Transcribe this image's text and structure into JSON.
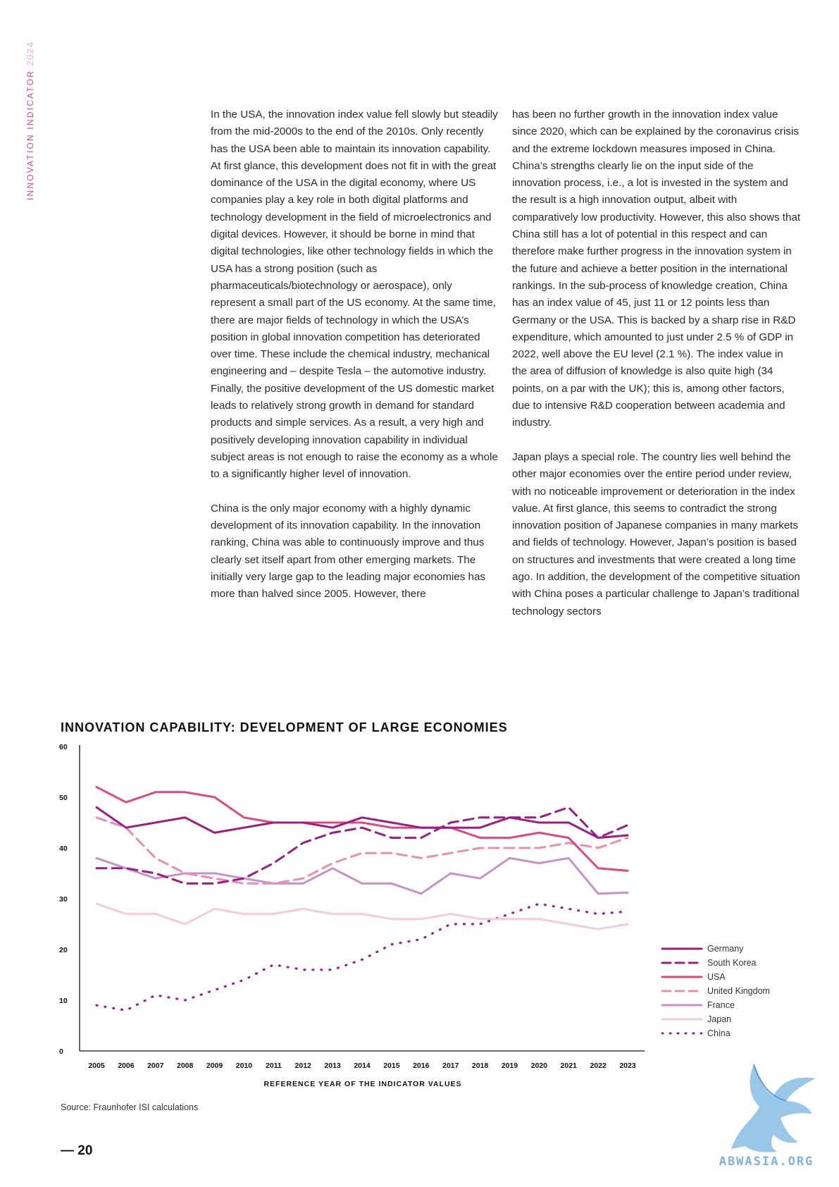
{
  "header": {
    "side_label_main": "INNOVATION INDICATOR ",
    "side_label_year": "2024"
  },
  "body_text": {
    "left_col": [
      "In the USA, the innovation index value fell slowly but steadily from the mid-2000s to the end of the 2010s. Only recently has the USA been able to maintain its innovation capability. At first glance, this development does not fit in with the great dominance of the USA in the digital economy, where US companies play a key role in both digital platforms and technology development in the field of microelectronics and digital devices. However, it should be borne in mind that digital technologies, like other technology fields in which the USA has a strong position (such as pharmaceuticals/biotechnology or aerospace), only represent a small part of the US economy. At the same time, there are major fields of technology in which the USA’s position in global innovation competition has deteriorated over time. These include the chemical industry, mechanical engineering and – despite Tesla – the automotive industry. Finally, the positive development of the US domestic market leads to relatively strong growth in demand for standard products and simple services. As a result, a very high and positively developing innovation capability in individual subject areas is not enough to raise the economy as a whole to a significantly higher level of innovation.",
      "China is the only major economy with a highly dynamic development of its innovation capability. In the innovation ranking, China was able to continuously improve and thus clearly set itself apart from other emerging markets. The initially very large gap to the leading major economies has more than halved since 2005. However, there"
    ],
    "right_col": [
      "has been no further growth in the innovation index value since 2020, which can be explained by the coronavirus crisis and the extreme lockdown measures imposed in China. China’s strengths clearly lie on the input side of the innovation process, i.e., a lot is invested in the system and the result is a high innovation output, albeit with comparatively low productivity. However, this also shows that China still has a lot of potential in this respect and can therefore make further progress in the innovation system in the future and achieve a better position in the international rankings. In the sub-process of knowledge creation, China has an index value of 45, just 11 or 12 points less than Germany or the USA. This is backed by a sharp rise in R&D expenditure, which amounted to just under 2.5 % of GDP in 2022, well above the EU level (2.1 %). The index value in the area of diffusion of knowledge is also quite high (34 points, on a par with the UK); this is, among other factors, due to intensive R&D cooperation between academia and industry.",
      "Japan plays a special role. The country lies well behind the other major economies over the entire period under review, with no noticeable improvement or deterioration in the index value. At first glance, this seems to contradict the strong innovation position of Japanese companies in many markets and fields of technology. However, Japan’s position is based on structures and investments that were created a long time ago. In addition, the development of the competitive situation with China poses a particular challenge to Japan’s traditional technology sectors"
    ]
  },
  "chart_data": {
    "type": "line",
    "title": "INNOVATION CAPABILITY: DEVELOPMENT OF LARGE ECONOMIES",
    "xlabel": "REFERENCE YEAR OF THE INDICATOR VALUES",
    "ylabel": "",
    "ylim": [
      0,
      60
    ],
    "yticks": [
      "0",
      "10",
      "20",
      "30",
      "40",
      "50",
      "60"
    ],
    "x": [
      "2005",
      "2006",
      "2007",
      "2008",
      "2009",
      "2010",
      "2011",
      "2012",
      "2013",
      "2014",
      "2015",
      "2016",
      "2017",
      "2018",
      "2019",
      "2020",
      "2021",
      "2022",
      "2023"
    ],
    "grid": false,
    "legend_position": "right",
    "series": [
      {
        "name": "Germany",
        "color": "#9c1d84",
        "style": "solid",
        "values": [
          48,
          44,
          45,
          46,
          43,
          44,
          45,
          45,
          44,
          46,
          45,
          44,
          44,
          44,
          46,
          45,
          45,
          42,
          42.5
        ]
      },
      {
        "name": "South Korea",
        "color": "#9c1d84",
        "style": "dashed",
        "values": [
          36,
          36,
          35,
          33,
          33,
          34,
          37,
          41,
          43,
          44,
          42,
          42,
          45,
          46,
          46,
          46,
          48,
          42,
          44.5
        ]
      },
      {
        "name": "USA",
        "color": "#e0497c",
        "style": "solid",
        "values": [
          52,
          49,
          51,
          51,
          50,
          46,
          45,
          45,
          45,
          45,
          44,
          44,
          44,
          42,
          42,
          43,
          42,
          36,
          35.5
        ]
      },
      {
        "name": "United Kingdom",
        "color": "#ea8db0",
        "style": "dashed",
        "values": [
          46,
          44,
          38,
          35,
          34,
          33,
          33,
          34,
          37,
          39,
          39,
          38,
          39,
          40,
          40,
          40,
          41,
          40,
          42
        ]
      },
      {
        "name": "France",
        "color": "#c793c6",
        "style": "solid",
        "values": [
          38,
          36,
          34,
          35,
          35,
          34,
          33,
          33,
          36,
          33,
          33,
          31,
          35,
          34,
          38,
          37,
          38,
          31,
          31.2
        ]
      },
      {
        "name": "Japan",
        "color": "#f6cbd9",
        "style": "solid",
        "values": [
          29,
          27,
          27,
          25,
          28,
          27,
          27,
          28,
          27,
          27,
          26,
          26,
          27,
          26,
          26,
          26,
          25,
          24,
          25
        ]
      },
      {
        "name": "China",
        "color": "#9c1d84",
        "style": "dotted",
        "values": [
          9,
          8,
          11,
          10,
          12,
          14,
          17,
          16,
          16,
          18,
          21,
          22,
          25,
          25,
          27,
          29,
          28,
          27,
          27.5
        ]
      }
    ]
  },
  "source": "Source: Fraunhofer ISI calculations",
  "page_number": "— 20",
  "watermark": {
    "text": "ABWASIA.ORG"
  }
}
